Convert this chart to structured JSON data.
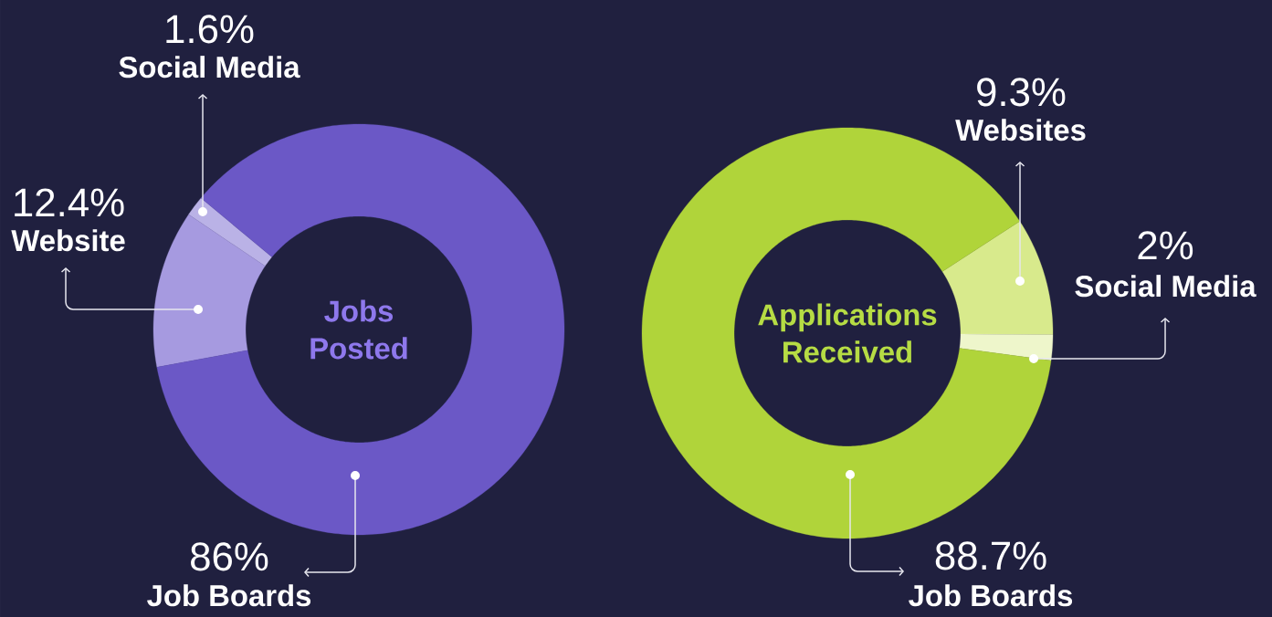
{
  "chart_data": [
    {
      "type": "donut",
      "title": "Jobs Posted",
      "categories": [
        "Social Media",
        "Website",
        "Job Boards"
      ],
      "values": [
        1.6,
        12.4,
        86
      ],
      "value_labels": [
        "1.6%",
        "12.4%",
        "86%"
      ],
      "colors": [
        "#bab2e6",
        "#a69ae0",
        "#6b58c6"
      ]
    },
    {
      "type": "donut",
      "title": "Applications Received",
      "categories": [
        "Websites",
        "Social Media",
        "Job Boards"
      ],
      "values": [
        9.3,
        2,
        88.7
      ],
      "value_labels": [
        "9.3%",
        "2%",
        "88.7%"
      ],
      "colors": [
        "#d8ea8c",
        "#eef6cb",
        "#b0d43a"
      ]
    }
  ]
}
